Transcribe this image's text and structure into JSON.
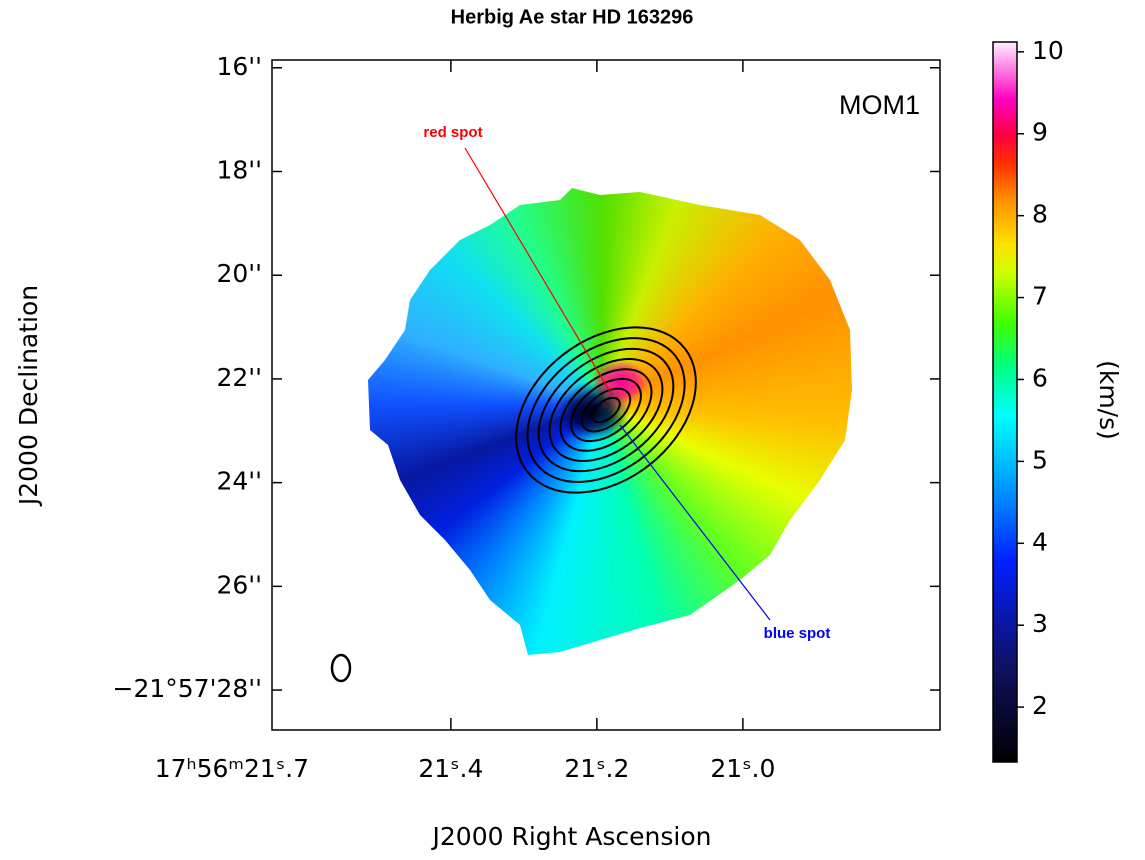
{
  "chart_data": {
    "type": "image",
    "title": "Herbig Ae star HD 163296",
    "xlabel": "J2000 Right Ascension",
    "ylabel": "J2000 Declination",
    "colorbar_label": "(km/s)",
    "panel_label": "MOM1",
    "annotations": [
      {
        "text": "red spot",
        "color": "#ff0000"
      },
      {
        "text": "blue spot",
        "color": "#0000ff"
      }
    ],
    "xlim": [
      21.645,
      20.73
    ],
    "xticks": [
      {
        "value": 21.7,
        "label": "17ʰ56ᵐ21ˢ.7"
      },
      {
        "value": 21.4,
        "label": "21ˢ.4"
      },
      {
        "value": 21.2,
        "label": "21ˢ.2"
      },
      {
        "value": 21.0,
        "label": "21ˢ.0"
      }
    ],
    "ylim": [
      28.77,
      15.85
    ],
    "yticks": [
      {
        "value": 16,
        "label": "16''"
      },
      {
        "value": 18,
        "label": "18''"
      },
      {
        "value": 20,
        "label": "20''"
      },
      {
        "value": 22,
        "label": "22''"
      },
      {
        "value": 24,
        "label": "24''"
      },
      {
        "value": 26,
        "label": "26''"
      },
      {
        "value": 28,
        "label": "−21°57'28''"
      }
    ],
    "clim": [
      1.33,
      10.12
    ],
    "cticks": [
      2,
      3,
      4,
      5,
      6,
      7,
      8,
      9,
      10
    ]
  }
}
